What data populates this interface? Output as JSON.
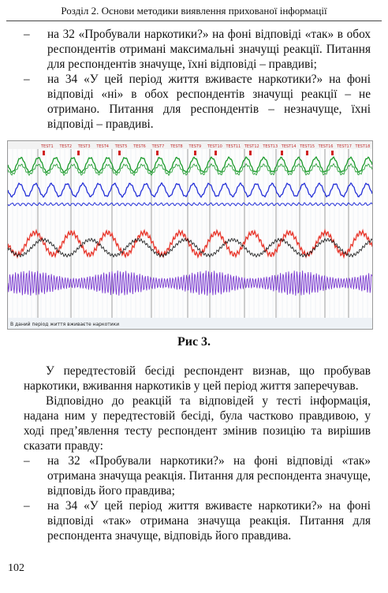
{
  "header": "Розділ 2. Основи методики виявлення прихованої інформації",
  "top_items": [
    "на 32 «Пробували наркотики?» на фоні відповіді «так» в обох респондентів отримані максимальні значущі реакції. Питання для респондентів значуще, їхні відповіді – правдиві;",
    "на 34 «У цей період життя вживаєте наркотики?» на фоні відповіді «ні» в обох респондентів значущі реакції – не отримано. Питання для респондентів – незначуще, їхні відповіді – правдиві."
  ],
  "dash": "–",
  "figure": {
    "tabs": [
      "TEST1",
      "TEST2",
      "TEST3",
      "TEST4",
      "TEST5",
      "TEST6",
      "TEST7",
      "TEST8",
      "TEST9",
      "TEST10",
      "TEST11",
      "TEST12",
      "TEST13",
      "TEST14",
      "TEST15",
      "TEST16",
      "TEST17",
      "TEST18"
    ],
    "status_text": "В даний період життя вживаєте наркотики",
    "colors": {
      "green": "#1a9a2a",
      "blue": "#2430d8",
      "red": "#e8352a",
      "purple": "#7a3ad0",
      "black": "#111111"
    }
  },
  "caption": "Рис 3.",
  "paragraphs": [
    "У передтестовій бесіді респондент визнав, що пробував наркотики, вживання наркотиків у цей період життя заперечував.",
    "Відповідно до реакцій та відповідей у тесті інформація, надана ним у передтестовій бесіді, була частково правдивою, у ході пред’явлення тесту респондент змінив позицію та вирішив сказати правду:"
  ],
  "bottom_items": [
    "на 32 «Пробували наркотики?» на фоні відповіді «так» отримана значуща реакція. Питання для респондента значуще, відповідь його правдива;",
    "на 34 «У цей період життя вживаєте наркотики?» на фоні відповіді «так» отримана значуща реакція. Питання для респондента значуще, відповідь його правдива."
  ],
  "page_number": "102"
}
